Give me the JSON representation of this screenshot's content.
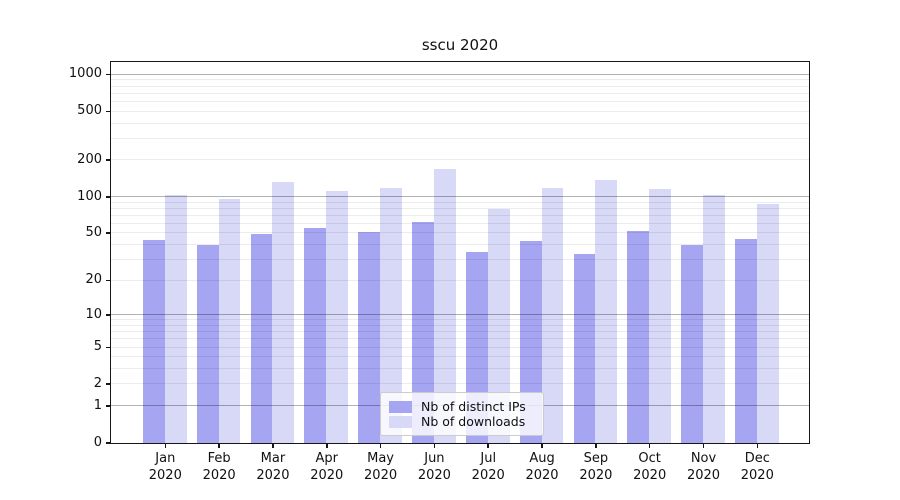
{
  "chart_data": {
    "type": "bar",
    "title": "sscu 2020",
    "categories": [
      "Jan",
      "Feb",
      "Mar",
      "Apr",
      "May",
      "Jun",
      "Jul",
      "Aug",
      "Sep",
      "Oct",
      "Nov",
      "Dec"
    ],
    "category_year": "2020",
    "series": [
      {
        "name": "Nb of distinct IPs",
        "color": "#a5a5f2",
        "values": [
          44,
          40,
          50,
          56,
          51,
          62,
          35,
          43,
          34,
          52,
          40,
          45
        ]
      },
      {
        "name": "Nb of downloads",
        "color": "#d8d8f7",
        "values": [
          105,
          96,
          133,
          112,
          118,
          170,
          80,
          118,
          138,
          117,
          104,
          87
        ]
      }
    ],
    "yscale": "log1p",
    "ylim": [
      0,
      1250
    ],
    "yticks": [
      0,
      1,
      2,
      5,
      10,
      20,
      50,
      100,
      200,
      500,
      1000
    ],
    "major_gridlines": [
      1,
      10,
      100,
      1000
    ],
    "minor_gridlines": [
      2,
      3,
      4,
      5,
      6,
      7,
      8,
      9,
      20,
      30,
      40,
      50,
      60,
      70,
      80,
      90,
      200,
      300,
      400,
      500,
      600,
      700,
      800,
      900
    ],
    "grid": true,
    "legend_position": "lower-center",
    "xlabel": "",
    "ylabel": ""
  }
}
